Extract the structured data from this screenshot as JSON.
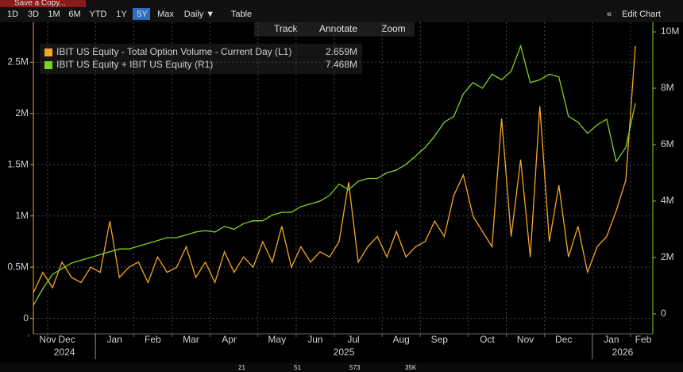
{
  "toolbar": {
    "save": "Save a Copy...",
    "ranges": [
      "1D",
      "3D",
      "1M",
      "6M",
      "YTD",
      "1Y",
      "5Y",
      "Max"
    ],
    "active_range": "5Y",
    "frequency": "Daily ▼",
    "table": "Table",
    "edit": "Edit Chart"
  },
  "chart_tools": [
    "Track",
    "Annotate",
    "Zoom"
  ],
  "footer": [
    "21",
    "51",
    "573",
    "35K"
  ],
  "chart_data": {
    "type": "line",
    "categories": [
      "Nov",
      null,
      "Dec",
      null,
      null,
      null,
      null,
      "Jan",
      null,
      null,
      null,
      "Feb",
      null,
      null,
      null,
      "Mar",
      null,
      null,
      null,
      "Apr",
      null,
      null,
      null,
      null,
      "May",
      null,
      null,
      null,
      "Jun",
      null,
      null,
      null,
      "Jul",
      null,
      null,
      null,
      null,
      "Aug",
      null,
      null,
      null,
      "Sep",
      null,
      null,
      null,
      null,
      "Oct",
      null,
      null,
      null,
      "Nov",
      null,
      null,
      null,
      "Dec",
      null,
      null,
      null,
      null,
      "Jan",
      null,
      null,
      null,
      "Feb"
    ],
    "year_labels": [
      "2024",
      "2025",
      "2026"
    ],
    "series": [
      {
        "name": "IBIT US Equity - Total Option Volume - Current Day (L1)",
        "last_label": "2.659M",
        "color": "#f5a623",
        "axis": "y",
        "values": [
          250000,
          450000,
          300000,
          550000,
          400000,
          350000,
          500000,
          450000,
          950000,
          400000,
          500000,
          550000,
          350000,
          600000,
          450000,
          500000,
          700000,
          400000,
          550000,
          350000,
          650000,
          450000,
          600000,
          500000,
          750000,
          550000,
          900000,
          500000,
          700000,
          550000,
          650000,
          600000,
          750000,
          1330000,
          550000,
          700000,
          800000,
          600000,
          850000,
          600000,
          700000,
          750000,
          950000,
          800000,
          1200000,
          1400000,
          1000000,
          850000,
          700000,
          1950000,
          800000,
          1550000,
          600000,
          2070000,
          750000,
          1300000,
          600000,
          900000,
          450000,
          700000,
          800000,
          1050000,
          1350000,
          2659000
        ]
      },
      {
        "name": "IBIT US Equity + IBIT US Equity (R1)",
        "last_label": "7.468M",
        "color": "#7ed321",
        "axis": "y2",
        "values": [
          300000,
          900000,
          1400000,
          1600000,
          1800000,
          1900000,
          2000000,
          2100000,
          2200000,
          2300000,
          2300000,
          2400000,
          2500000,
          2600000,
          2700000,
          2700000,
          2800000,
          2900000,
          2950000,
          2900000,
          3100000,
          3000000,
          3200000,
          3300000,
          3300000,
          3500000,
          3600000,
          3600000,
          3800000,
          3900000,
          4000000,
          4200000,
          4600000,
          4400000,
          4700000,
          4800000,
          4800000,
          5000000,
          5100000,
          5300000,
          5600000,
          5900000,
          6300000,
          6800000,
          7000000,
          7800000,
          8200000,
          8000000,
          8500000,
          8300000,
          8600000,
          9500000,
          8200000,
          8300000,
          8500000,
          8400000,
          7000000,
          6800000,
          6400000,
          6700000,
          6900000,
          5400000,
          5900000,
          7468000
        ]
      }
    ],
    "ylim": [
      -150000,
      2890000
    ],
    "yticks": [
      0,
      {
        "value": 500000,
        "label": "0.5M"
      },
      {
        "value": 1000000,
        "label": "1M"
      },
      {
        "value": 1500000,
        "label": "1.5M"
      },
      {
        "value": 2000000,
        "label": "2M"
      },
      {
        "value": 2500000,
        "label": "2.5M"
      }
    ],
    "y2lim": [
      -710000,
      10340000
    ],
    "y2ticks": [
      0,
      {
        "value": 2000000,
        "label": "2M"
      },
      {
        "value": 4000000,
        "label": "4M"
      },
      {
        "value": 6000000,
        "label": "6M"
      },
      {
        "value": 8000000,
        "label": "8M"
      },
      {
        "value": 10000000,
        "label": "10M"
      }
    ],
    "grid": true
  }
}
